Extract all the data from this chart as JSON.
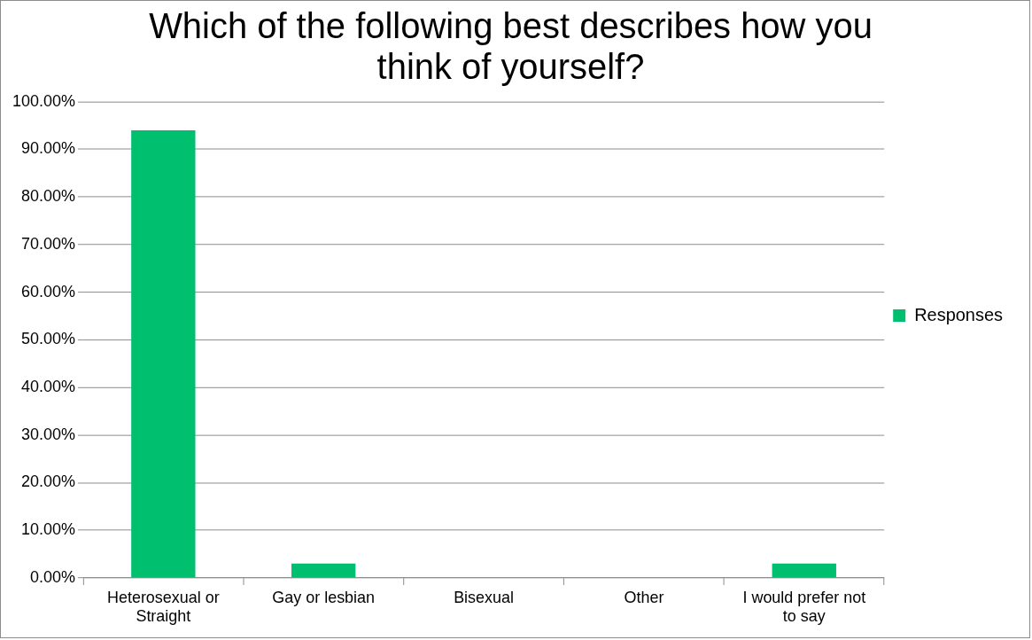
{
  "chart_data": {
    "type": "bar",
    "title": "Which of the following best describes how you think of yourself?",
    "categories": [
      "Heterosexual or Straight",
      "Gay or lesbian",
      "Bisexual",
      "Other",
      "I would prefer not to say"
    ],
    "series": [
      {
        "name": "Responses",
        "color": "#00bf6f",
        "values": [
          94,
          3,
          0,
          0,
          3
        ]
      }
    ],
    "ylim": [
      0,
      100
    ],
    "yticks": [
      {
        "value": 0,
        "label": "0.00%"
      },
      {
        "value": 10,
        "label": "10.00%"
      },
      {
        "value": 20,
        "label": "20.00%"
      },
      {
        "value": 30,
        "label": "30.00%"
      },
      {
        "value": 40,
        "label": "40.00%"
      },
      {
        "value": 50,
        "label": "50.00%"
      },
      {
        "value": 60,
        "label": "60.00%"
      },
      {
        "value": 70,
        "label": "70.00%"
      },
      {
        "value": 80,
        "label": "80.00%"
      },
      {
        "value": 90,
        "label": "90.00%"
      },
      {
        "value": 100,
        "label": "100.00%"
      }
    ],
    "grid": "y",
    "legend": "right"
  }
}
